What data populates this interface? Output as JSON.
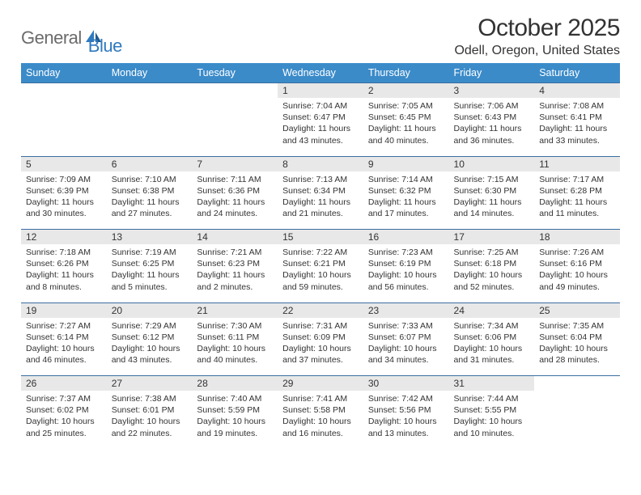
{
  "logo": {
    "text1": "General",
    "text2": "Blue"
  },
  "title": "October 2025",
  "location": "Odell, Oregon, United States",
  "colors": {
    "header_bg": "#3b8bc9",
    "header_text": "#ffffff",
    "daynum_bg": "#e8e8e8",
    "row_border": "#3b6ea0",
    "logo_gray": "#6b6b6b",
    "logo_blue": "#2f7abf"
  },
  "weekdays": [
    "Sunday",
    "Monday",
    "Tuesday",
    "Wednesday",
    "Thursday",
    "Friday",
    "Saturday"
  ],
  "weeks": [
    [
      null,
      null,
      null,
      {
        "n": "1",
        "sr": "7:04 AM",
        "ss": "6:47 PM",
        "dl": "11 hours and 43 minutes."
      },
      {
        "n": "2",
        "sr": "7:05 AM",
        "ss": "6:45 PM",
        "dl": "11 hours and 40 minutes."
      },
      {
        "n": "3",
        "sr": "7:06 AM",
        "ss": "6:43 PM",
        "dl": "11 hours and 36 minutes."
      },
      {
        "n": "4",
        "sr": "7:08 AM",
        "ss": "6:41 PM",
        "dl": "11 hours and 33 minutes."
      }
    ],
    [
      {
        "n": "5",
        "sr": "7:09 AM",
        "ss": "6:39 PM",
        "dl": "11 hours and 30 minutes."
      },
      {
        "n": "6",
        "sr": "7:10 AM",
        "ss": "6:38 PM",
        "dl": "11 hours and 27 minutes."
      },
      {
        "n": "7",
        "sr": "7:11 AM",
        "ss": "6:36 PM",
        "dl": "11 hours and 24 minutes."
      },
      {
        "n": "8",
        "sr": "7:13 AM",
        "ss": "6:34 PM",
        "dl": "11 hours and 21 minutes."
      },
      {
        "n": "9",
        "sr": "7:14 AM",
        "ss": "6:32 PM",
        "dl": "11 hours and 17 minutes."
      },
      {
        "n": "10",
        "sr": "7:15 AM",
        "ss": "6:30 PM",
        "dl": "11 hours and 14 minutes."
      },
      {
        "n": "11",
        "sr": "7:17 AM",
        "ss": "6:28 PM",
        "dl": "11 hours and 11 minutes."
      }
    ],
    [
      {
        "n": "12",
        "sr": "7:18 AM",
        "ss": "6:26 PM",
        "dl": "11 hours and 8 minutes."
      },
      {
        "n": "13",
        "sr": "7:19 AM",
        "ss": "6:25 PM",
        "dl": "11 hours and 5 minutes."
      },
      {
        "n": "14",
        "sr": "7:21 AM",
        "ss": "6:23 PM",
        "dl": "11 hours and 2 minutes."
      },
      {
        "n": "15",
        "sr": "7:22 AM",
        "ss": "6:21 PM",
        "dl": "10 hours and 59 minutes."
      },
      {
        "n": "16",
        "sr": "7:23 AM",
        "ss": "6:19 PM",
        "dl": "10 hours and 56 minutes."
      },
      {
        "n": "17",
        "sr": "7:25 AM",
        "ss": "6:18 PM",
        "dl": "10 hours and 52 minutes."
      },
      {
        "n": "18",
        "sr": "7:26 AM",
        "ss": "6:16 PM",
        "dl": "10 hours and 49 minutes."
      }
    ],
    [
      {
        "n": "19",
        "sr": "7:27 AM",
        "ss": "6:14 PM",
        "dl": "10 hours and 46 minutes."
      },
      {
        "n": "20",
        "sr": "7:29 AM",
        "ss": "6:12 PM",
        "dl": "10 hours and 43 minutes."
      },
      {
        "n": "21",
        "sr": "7:30 AM",
        "ss": "6:11 PM",
        "dl": "10 hours and 40 minutes."
      },
      {
        "n": "22",
        "sr": "7:31 AM",
        "ss": "6:09 PM",
        "dl": "10 hours and 37 minutes."
      },
      {
        "n": "23",
        "sr": "7:33 AM",
        "ss": "6:07 PM",
        "dl": "10 hours and 34 minutes."
      },
      {
        "n": "24",
        "sr": "7:34 AM",
        "ss": "6:06 PM",
        "dl": "10 hours and 31 minutes."
      },
      {
        "n": "25",
        "sr": "7:35 AM",
        "ss": "6:04 PM",
        "dl": "10 hours and 28 minutes."
      }
    ],
    [
      {
        "n": "26",
        "sr": "7:37 AM",
        "ss": "6:02 PM",
        "dl": "10 hours and 25 minutes."
      },
      {
        "n": "27",
        "sr": "7:38 AM",
        "ss": "6:01 PM",
        "dl": "10 hours and 22 minutes."
      },
      {
        "n": "28",
        "sr": "7:40 AM",
        "ss": "5:59 PM",
        "dl": "10 hours and 19 minutes."
      },
      {
        "n": "29",
        "sr": "7:41 AM",
        "ss": "5:58 PM",
        "dl": "10 hours and 16 minutes."
      },
      {
        "n": "30",
        "sr": "7:42 AM",
        "ss": "5:56 PM",
        "dl": "10 hours and 13 minutes."
      },
      {
        "n": "31",
        "sr": "7:44 AM",
        "ss": "5:55 PM",
        "dl": "10 hours and 10 minutes."
      },
      null
    ]
  ],
  "labels": {
    "sunrise": "Sunrise:",
    "sunset": "Sunset:",
    "daylight": "Daylight:"
  }
}
